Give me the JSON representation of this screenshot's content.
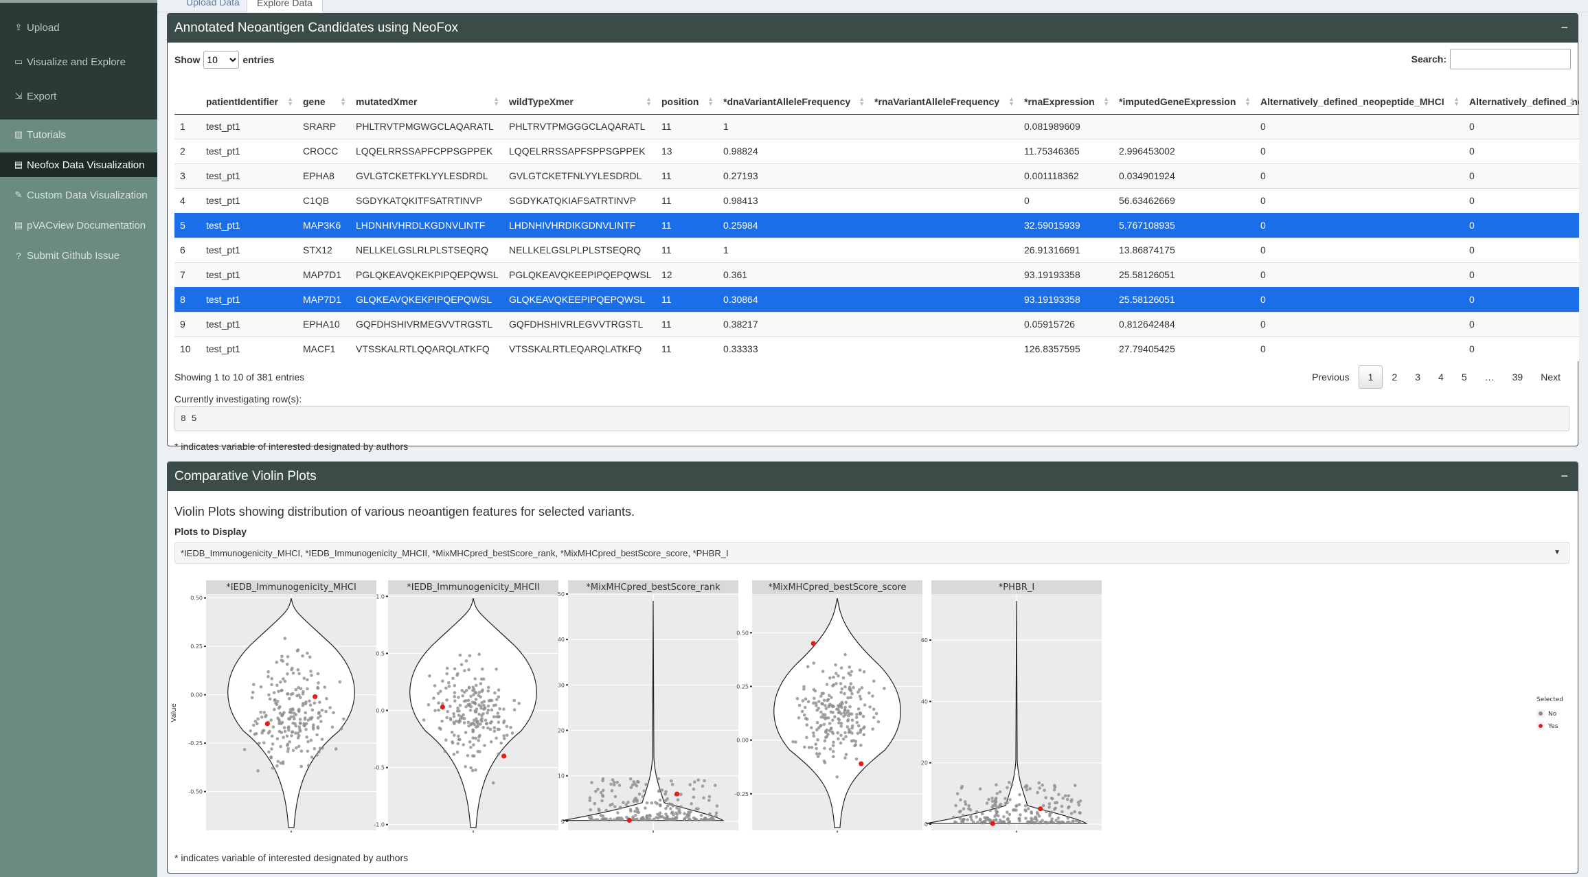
{
  "sidebar": {
    "items": [
      {
        "label": "Upload",
        "icon": "upload-icon",
        "glyph": "⇪"
      },
      {
        "label": "Visualize and Explore",
        "icon": "monitor-icon",
        "glyph": "▭"
      },
      {
        "label": "Export",
        "icon": "export-icon",
        "glyph": "⇲"
      },
      {
        "label": "Tutorials",
        "icon": "book-icon",
        "glyph": "▥"
      },
      {
        "label": "Neofox Data Visualization",
        "icon": "file-icon",
        "glyph": "▤"
      },
      {
        "label": "Custom Data Visualization",
        "icon": "edit-icon",
        "glyph": "✎"
      },
      {
        "label": "pVACview Documentation",
        "icon": "document-icon",
        "glyph": "▤"
      },
      {
        "label": "Submit Github Issue",
        "icon": "question-icon",
        "glyph": "?"
      }
    ]
  },
  "tabs": {
    "upload": "Upload Data",
    "explore": "Explore Data"
  },
  "table_box": {
    "title": "Annotated Neoantigen Candidates using NeoFox",
    "collapse": "−",
    "show_label": "Show",
    "entries_value": "10",
    "entries_label": "entries",
    "search_label": "Search:",
    "columns": [
      "",
      "patientIdentifier",
      "gene",
      "mutatedXmer",
      "wildTypeXmer",
      "position",
      "*dnaVariantAlleleFrequency",
      "*rnaVariantAlleleFrequency",
      "*rnaExpression",
      "*imputedGeneExpression",
      "Alternatively_defined_neopeptide_MHCI",
      "Alternatively_defined_ne"
    ],
    "rows": [
      [
        "1",
        "test_pt1",
        "SRARP",
        "PHLTRVTPMGWGCLAQARATL",
        "PHLTRVTPMGGGCLAQARATL",
        "11",
        "1",
        "",
        "0.081989609",
        "",
        "0",
        "0"
      ],
      [
        "2",
        "test_pt1",
        "CROCC",
        "LQQELRRSSAPFCPPSGPPEK",
        "LQQELRRSSAPFSPPSGPPEK",
        "13",
        "0.98824",
        "",
        "11.75346365",
        "2.996453002",
        "0",
        "0"
      ],
      [
        "3",
        "test_pt1",
        "EPHA8",
        "GVLGTCKETFKLYYLESDRDL",
        "GVLGTCKETFNLYYLESDRDL",
        "11",
        "0.27193",
        "",
        "0.001118362",
        "0.034901924",
        "0",
        "0"
      ],
      [
        "4",
        "test_pt1",
        "C1QB",
        "SGDYKATQKITFSATRTINVP",
        "SGDYKATQKIAFSATRTINVP",
        "11",
        "0.98413",
        "",
        "0",
        "56.63462669",
        "0",
        "0"
      ],
      [
        "5",
        "test_pt1",
        "MAP3K6",
        "LHDNHIVHRDLKGDNVLINTF",
        "LHDNHIVHRDIKGDNVLINTF",
        "11",
        "0.25984",
        "",
        "32.59015939",
        "5.767108935",
        "0",
        "0"
      ],
      [
        "6",
        "test_pt1",
        "STX12",
        "NELLKELGSLRLPLSTSEQRQ",
        "NELLKELGSLPLPLSTSEQRQ",
        "11",
        "1",
        "",
        "26.91316691",
        "13.86874175",
        "0",
        "0"
      ],
      [
        "7",
        "test_pt1",
        "MAP7D1",
        "PGLQKEAVQKEKPIPQEPQWSL",
        "PGLQKEAVQKEEPIPQEPQWSL",
        "12",
        "0.361",
        "",
        "93.19193358",
        "25.58126051",
        "0",
        "0"
      ],
      [
        "8",
        "test_pt1",
        "MAP7D1",
        "GLQKEAVQKEKPIPQEPQWSL",
        "GLQKEAVQKEEPIPQEPQWSL",
        "11",
        "0.30864",
        "",
        "93.19193358",
        "25.58126051",
        "0",
        "0"
      ],
      [
        "9",
        "test_pt1",
        "EPHA10",
        "GQFDHSHIVRMEGVVTRGSTL",
        "GQFDHSHIVRLEGVVTRGSTL",
        "11",
        "0.38217",
        "",
        "0.05915726",
        "0.812642484",
        "0",
        "0"
      ],
      [
        "10",
        "test_pt1",
        "MACF1",
        "VTSSKALRTLQQARQLATKFQ",
        "VTSSKALRTLEQARQLATKFQ",
        "11",
        "0.33333",
        "",
        "126.8357595",
        "27.79405425",
        "0",
        "0"
      ]
    ],
    "selected_rows": [
      5,
      8
    ],
    "info": "Showing 1 to 10 of 381 entries",
    "pager": [
      "Previous",
      "1",
      "2",
      "3",
      "4",
      "5",
      "…",
      "39",
      "Next"
    ],
    "current_page": "1",
    "investigating_label": "Currently investigating row(s):",
    "investigating_value": "8 5",
    "note": "* indicates variable of interested designated by authors"
  },
  "violin_box": {
    "title": "Comparative Violin Plots",
    "collapse": "−",
    "description": "Violin Plots showing distribution of various neoantigen features for selected variants.",
    "plots_label": "Plots to Display",
    "plots_value": "*IEDB_Immunogenicity_MHCI, *IEDB_Immunogenicity_MHCII, *MixMHCpred_bestScore_rank, *MixMHCpred_bestScore_score, *PHBR_I",
    "note": "* indicates variable of interested designated by authors"
  },
  "chart_data": {
    "type": "violin",
    "ylabel": "Value",
    "legend": {
      "title": "Selected",
      "entries": [
        "No",
        "Yes"
      ],
      "colors": [
        "#8c8c8c",
        "#e0201b"
      ],
      "position": "right"
    },
    "panels": [
      {
        "title": "*IEDB_Immunogenicity_MHCI",
        "ylim": [
          -0.7,
          0.52
        ],
        "ticks": [
          0.5,
          0.25,
          0.0,
          -0.25,
          -0.5
        ],
        "tick_labels": [
          "0.50",
          "0.25",
          "0.00",
          "-0.25",
          "-0.50"
        ],
        "selected": [
          -0.01,
          -0.15
        ],
        "xlabel": "-"
      },
      {
        "title": "*IEDB_Immunogenicity_MHCII",
        "ylim": [
          -1.05,
          1.02
        ],
        "ticks": [
          1.0,
          0.5,
          0.0,
          -0.5,
          -1.0
        ],
        "tick_labels": [
          "1.0",
          "0.5",
          "0.0",
          "-0.5",
          "-1.0"
        ],
        "selected": [
          0.03,
          -0.4
        ],
        "xlabel": "-"
      },
      {
        "title": "*MixMHCpred_bestScore_rank",
        "ylim": [
          -2,
          50
        ],
        "ticks": [
          50,
          40,
          30,
          20,
          10,
          0
        ],
        "tick_labels": [
          "50",
          "40",
          "30",
          "20",
          "10",
          "0"
        ],
        "selected": [
          6,
          0.2
        ],
        "xlabel": "-"
      },
      {
        "title": "*MixMHCpred_bestScore_score",
        "ylim": [
          -0.42,
          0.68
        ],
        "ticks": [
          0.5,
          0.25,
          0.0,
          -0.25
        ],
        "tick_labels": [
          "0.50",
          "0.25",
          "0.00",
          "-0.25"
        ],
        "selected": [
          0.45,
          -0.11
        ],
        "xlabel": "-"
      },
      {
        "title": "*PHBR_I",
        "ylim": [
          -2,
          75
        ],
        "ticks": [
          60,
          40,
          20,
          0
        ],
        "tick_labels": [
          "60",
          "40",
          "20",
          "0"
        ],
        "selected": [
          5,
          0.2
        ],
        "xlabel": "-"
      }
    ]
  }
}
